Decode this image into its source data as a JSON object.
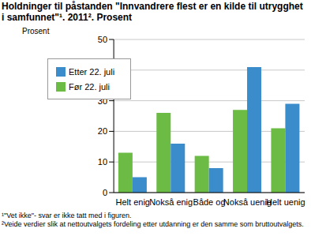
{
  "chart_data": {
    "type": "bar",
    "title": "Holdninger til påstanden \"Innvandrere flest er en kilde til utrygghet i samfunnet\"¹. 2011². Prosent",
    "y_label": "Prosent",
    "categories": [
      "Helt enig",
      "Nokså enig",
      "Både og",
      "Nokså uenig",
      "Helt uenig"
    ],
    "series": [
      {
        "name": "Før 22. juli",
        "color": "#6cbb44",
        "values": [
          13,
          26,
          12,
          27,
          21
        ]
      },
      {
        "name": "Etter 22. juli",
        "color": "#3a8ccb",
        "values": [
          5,
          16,
          8,
          41,
          29
        ]
      }
    ],
    "ylim": [
      0,
      50
    ],
    "yticks": [
      0,
      10,
      20,
      30,
      40,
      50
    ],
    "grid": true,
    "legend": "top-left",
    "footnotes": [
      "¹\"Vet ikke\"- svar er ikke tatt med i figuren.",
      "²Veide verdier slik at nettoutvalgets fordeling etter utdanning er den samme som bruttoutvalgets."
    ]
  }
}
